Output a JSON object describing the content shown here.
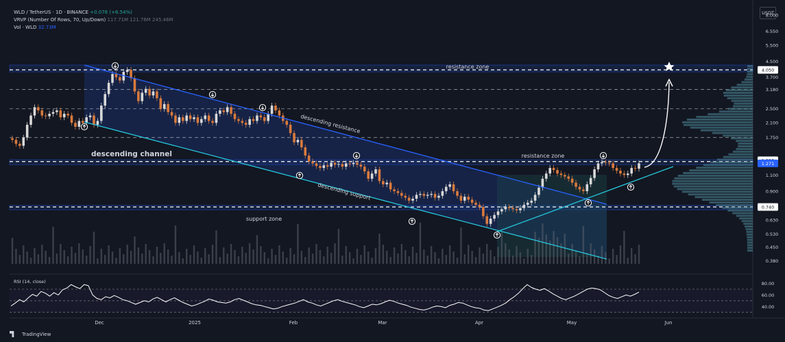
{
  "header": {
    "symbol": "WLD / TetherUS · 1D · BINANCE",
    "change": "+0.078 (+6.54%)",
    "vrvp_label": "VRVP (Number Of Rows, 70, Up/Down)",
    "vrvp_values": "117.71M   121.76M   245.46M",
    "vol_label": "Vol · WLD",
    "vol_value": "32.73M"
  },
  "currency_button": "USDT",
  "brand": "TradingView",
  "colors": {
    "background": "#131722",
    "up": "#26a69a",
    "down": "#ef5350",
    "candle_up_on_chart": "#d8d8d8",
    "candle_down_on_chart": "#d97a3d",
    "channel_line": "#2962ff",
    "support_line": "#26c6da",
    "zone_fill": "#1e3a8a",
    "rsi": "#ffffff"
  },
  "chart_data": {
    "type": "candlestick",
    "symbol": "WLD/USDT",
    "timeframe": "1D",
    "exchange": "BINANCE",
    "price_scale": "log",
    "ylim": [
      0.33,
      9.0
    ],
    "price_ticks": [
      "8.000",
      "6.550",
      "5.500",
      "4.500",
      "3.700",
      "3.180",
      "2.500",
      "2.100",
      "1.750",
      "1.320",
      "1.100",
      "0.900",
      "0.740",
      "0.630",
      "0.530",
      "0.450",
      "0.380"
    ],
    "marked_prices": [
      {
        "label": "4.050",
        "kind": "level"
      },
      {
        "label": "1.320",
        "kind": "level"
      },
      {
        "label": "1.271",
        "kind": "last"
      },
      {
        "label": "0.740",
        "kind": "level"
      }
    ],
    "x_labels": [
      "Dec",
      "2025",
      "Feb",
      "Mar",
      "Apr",
      "May",
      "Jun"
    ],
    "close_series": [
      1.7,
      1.62,
      1.58,
      1.75,
      2.05,
      2.3,
      2.55,
      2.45,
      2.3,
      2.28,
      2.35,
      2.4,
      2.45,
      2.25,
      2.35,
      2.3,
      2.1,
      2.0,
      2.15,
      2.1,
      2.25,
      2.3,
      2.05,
      2.15,
      2.6,
      3.0,
      3.45,
      3.85,
      3.7,
      3.55,
      3.95,
      4.05,
      3.65,
      3.1,
      2.75,
      3.05,
      3.2,
      2.95,
      3.1,
      2.85,
      2.5,
      2.65,
      2.4,
      2.3,
      2.1,
      2.25,
      2.15,
      2.3,
      2.2,
      2.25,
      2.1,
      2.2,
      2.3,
      2.15,
      2.1,
      2.35,
      2.45,
      2.4,
      2.55,
      2.35,
      2.2,
      2.15,
      2.1,
      2.05,
      2.2,
      2.15,
      2.3,
      2.25,
      2.15,
      2.35,
      2.6,
      2.45,
      2.3,
      2.15,
      2.05,
      1.85,
      1.65,
      1.7,
      1.55,
      1.4,
      1.3,
      1.27,
      1.23,
      1.2,
      1.24,
      1.22,
      1.28,
      1.25,
      1.26,
      1.22,
      1.27,
      1.26,
      1.28,
      1.25,
      1.22,
      1.15,
      1.05,
      1.12,
      1.18,
      1.02,
      0.98,
      1.0,
      0.92,
      0.9,
      0.88,
      0.85,
      0.83,
      0.8,
      0.82,
      0.86,
      0.87,
      0.85,
      0.86,
      0.87,
      0.83,
      0.85,
      0.9,
      0.95,
      0.98,
      0.9,
      0.85,
      0.8,
      0.84,
      0.81,
      0.78,
      0.76,
      0.74,
      0.66,
      0.6,
      0.64,
      0.67,
      0.7,
      0.72,
      0.74,
      0.73,
      0.72,
      0.71,
      0.73,
      0.76,
      0.78,
      0.8,
      0.86,
      0.94,
      1.05,
      1.12,
      1.2,
      1.17,
      1.12,
      1.1,
      1.08,
      1.05,
      1.0,
      0.95,
      0.92,
      0.9,
      0.98,
      1.06,
      1.18,
      1.27,
      1.29,
      1.28,
      1.27,
      1.2,
      1.16,
      1.12,
      1.1,
      1.12,
      1.2,
      1.19,
      1.271
    ],
    "rsi": {
      "label": "RSI (14, close)",
      "ticks": [
        "80.00",
        "60.00",
        "40.00"
      ],
      "values": [
        41,
        46,
        52,
        48,
        55,
        61,
        58,
        66,
        63,
        58,
        64,
        60,
        69,
        72,
        78,
        74,
        71,
        78,
        76,
        60,
        54,
        52,
        57,
        55,
        59,
        56,
        52,
        50,
        47,
        44,
        47,
        50,
        48,
        53,
        56,
        52,
        48,
        52,
        55,
        51,
        47,
        44,
        41,
        43,
        46,
        49,
        53,
        51,
        48,
        47,
        46,
        48,
        52,
        54,
        51,
        48,
        45,
        43,
        42,
        40,
        38,
        36,
        37,
        40,
        42,
        44,
        46,
        49,
        52,
        48,
        46,
        43,
        41,
        44,
        47,
        50,
        52,
        49,
        47,
        45,
        43,
        40,
        38,
        41,
        44,
        43,
        45,
        48,
        51,
        49,
        46,
        44,
        42,
        39,
        37,
        35,
        34,
        36,
        39,
        41,
        40,
        38,
        42,
        44,
        47,
        46,
        43,
        40,
        38,
        37,
        34,
        33,
        36,
        39,
        42,
        46,
        52,
        57,
        63,
        71,
        78,
        73,
        70,
        68,
        71,
        67,
        62,
        58,
        54,
        52,
        55,
        58,
        62,
        66,
        70,
        72,
        71,
        69,
        64,
        59,
        56,
        54,
        57,
        60,
        58,
        61,
        65
      ]
    },
    "annotations": [
      {
        "text": "resistance zone",
        "type": "zone"
      },
      {
        "text": "resistance zone",
        "type": "zone"
      },
      {
        "text": "support zone",
        "type": "zone"
      },
      {
        "text": "descending channel",
        "type": "label"
      },
      {
        "text": "descending resistance",
        "type": "trendline"
      },
      {
        "text": "descending support",
        "type": "trendline"
      }
    ]
  }
}
